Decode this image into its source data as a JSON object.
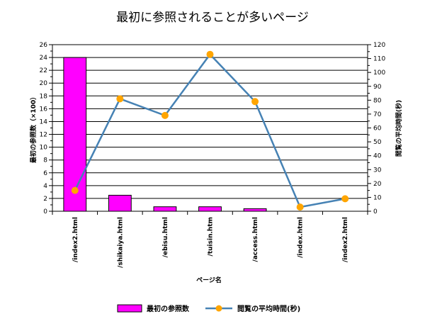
{
  "chart_data": {
    "type": "bar",
    "title": "最初に参照されることが多いページ",
    "xlabel": "ページ名",
    "ylabel_left": "最初の参照数（×100）",
    "ylabel_right": "閲覧の平均時間(秒)",
    "categories": [
      "/index2.html",
      "/shikaiya.html",
      "/ebisu.html",
      "/tuisin.htm",
      "/access.html",
      "/index.html",
      "/index2.html"
    ],
    "series": [
      {
        "name": "最初の参照数",
        "type": "bar",
        "axis": "left",
        "color": "#ff00ff",
        "values": [
          24,
          2.5,
          0.7,
          0.7,
          0.4,
          null,
          null
        ]
      },
      {
        "name": "閲覧の平均時間(秒)",
        "type": "line",
        "axis": "right",
        "color": "#4682b4",
        "marker_color": "#ffa500",
        "values": [
          15,
          81,
          69,
          113,
          79,
          3,
          9
        ]
      }
    ],
    "ylim_left": [
      0,
      26
    ],
    "ylim_right": [
      0,
      120
    ],
    "yticks_left": [
      0,
      2,
      4,
      6,
      8,
      10,
      12,
      14,
      16,
      18,
      20,
      22,
      24,
      26
    ],
    "yticks_right": [
      0,
      10,
      20,
      30,
      40,
      50,
      60,
      70,
      80,
      90,
      100,
      110,
      120
    ],
    "grid": true,
    "legend": "bottom"
  }
}
